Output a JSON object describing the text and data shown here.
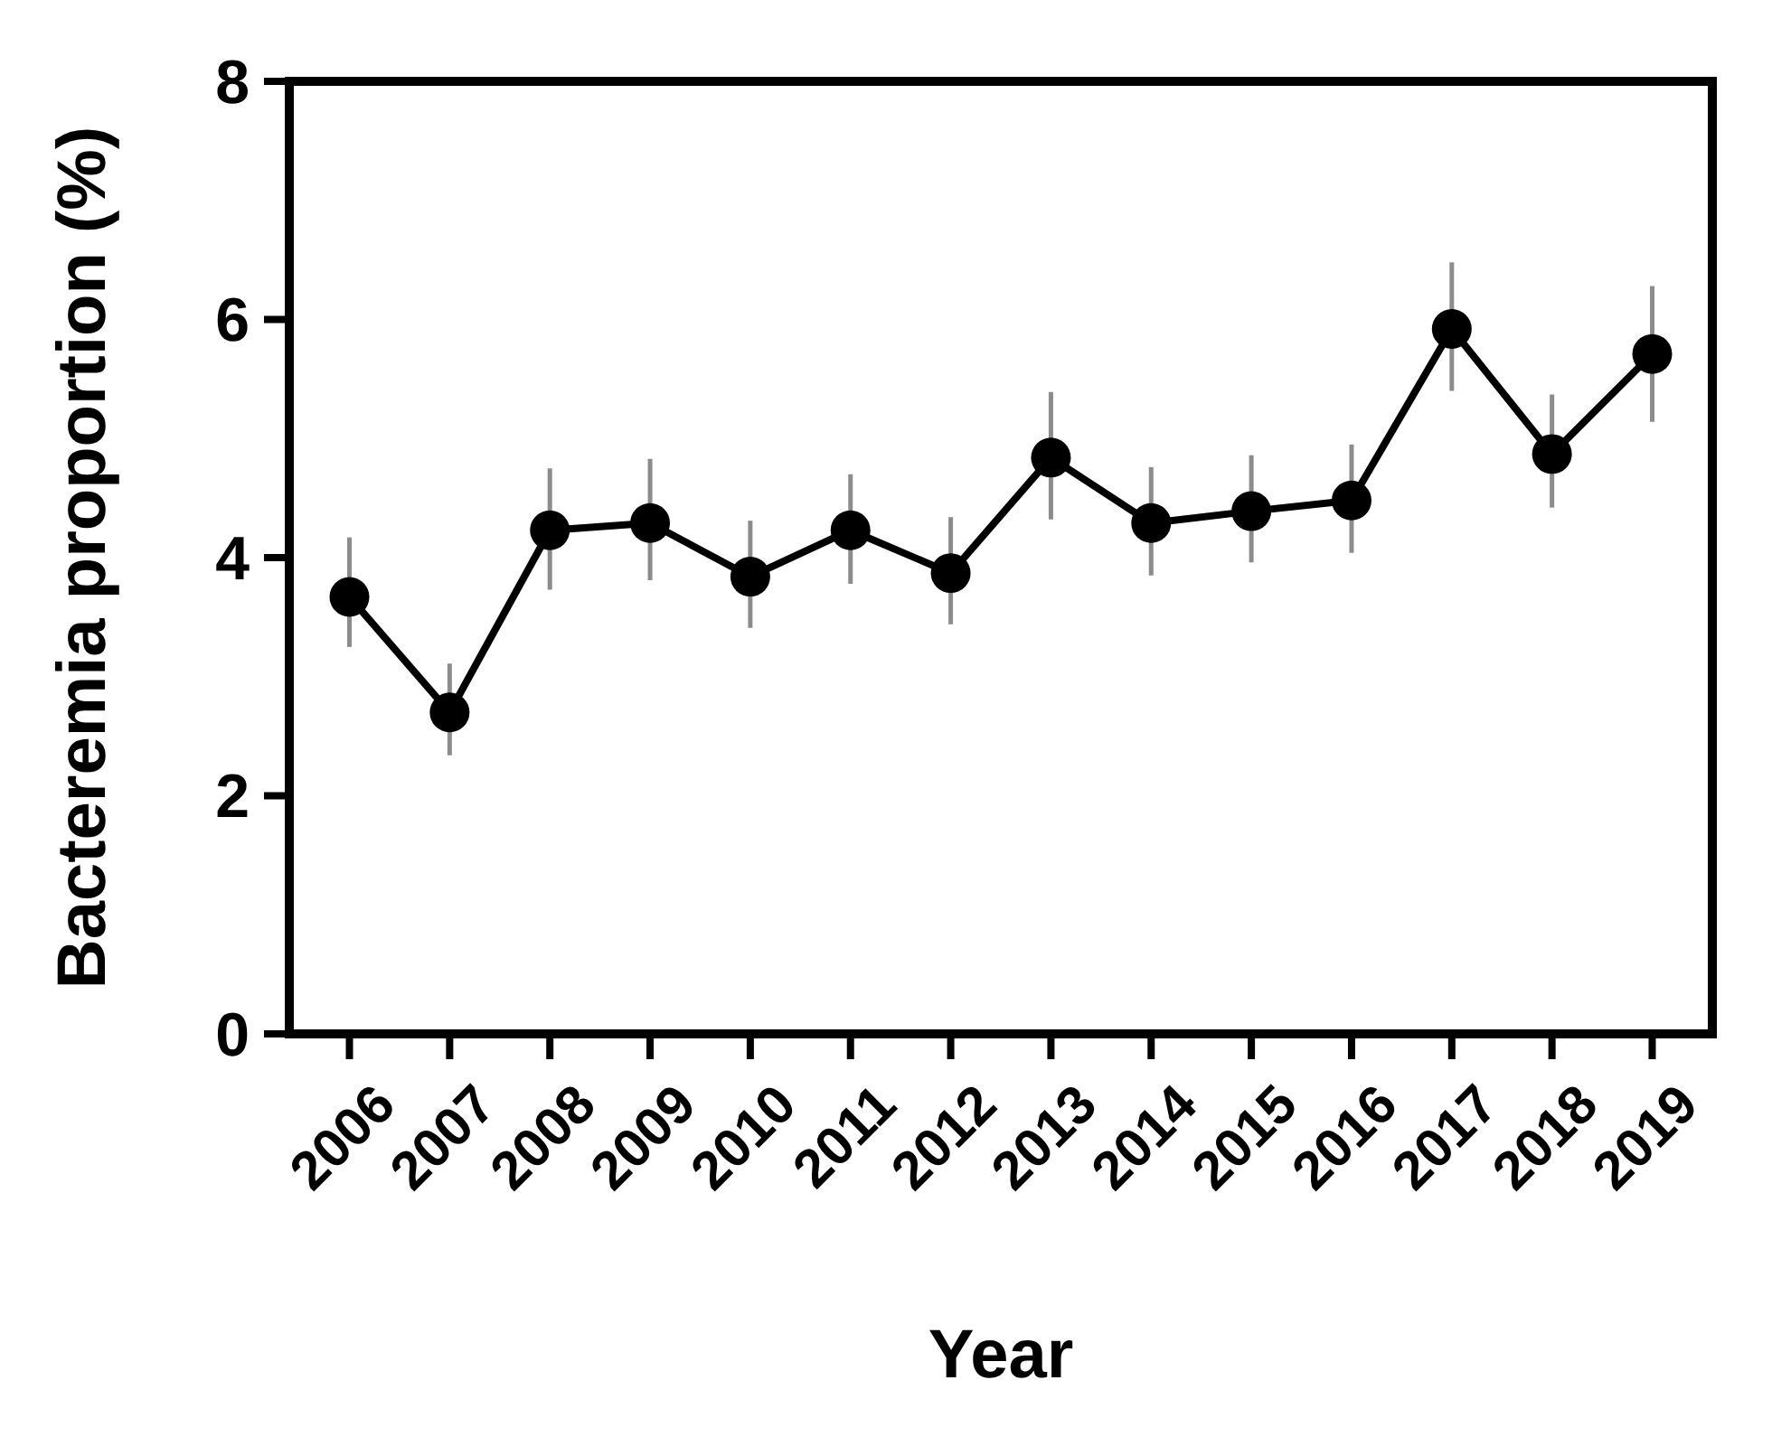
{
  "chart_data": {
    "type": "line",
    "xlabel": "Year",
    "ylabel": "Bacteremia proportion (%)",
    "categories": [
      "2006",
      "2007",
      "2008",
      "2009",
      "2010",
      "2011",
      "2012",
      "2013",
      "2014",
      "2015",
      "2016",
      "2017",
      "2018",
      "2019"
    ],
    "series": [
      {
        "color": "#000000",
        "values": [
          3.67,
          2.7,
          4.23,
          4.29,
          3.84,
          4.23,
          3.87,
          4.84,
          4.29,
          4.39,
          4.48,
          5.92,
          4.87,
          5.71
        ],
        "errors": [
          [
            3.25,
            4.17
          ],
          [
            2.34,
            3.11
          ],
          [
            3.73,
            4.75
          ],
          [
            3.81,
            4.83
          ],
          [
            3.41,
            4.31
          ],
          [
            3.78,
            4.7
          ],
          [
            3.44,
            4.34
          ],
          [
            4.32,
            5.39
          ],
          [
            3.85,
            4.76
          ],
          [
            3.96,
            4.86
          ],
          [
            4.04,
            4.95
          ],
          [
            5.4,
            6.48
          ],
          [
            4.42,
            5.37
          ],
          [
            5.14,
            6.28
          ]
        ]
      }
    ],
    "ylim": [
      0,
      8
    ],
    "yticks": [
      0,
      2,
      4,
      6,
      8
    ],
    "marker": "circle",
    "line_style": "solid"
  }
}
